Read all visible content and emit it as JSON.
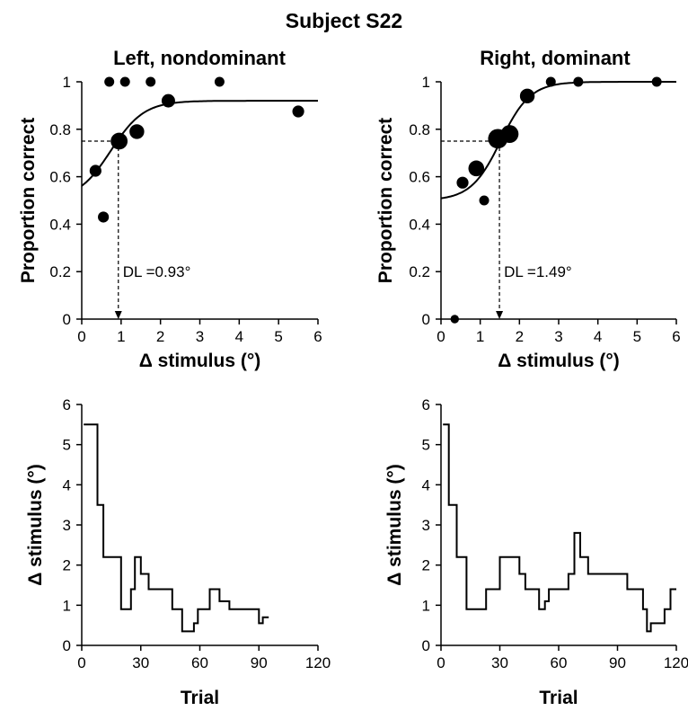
{
  "figure_title": "Subject S22",
  "chart_data": [
    {
      "id": "left-psychometric",
      "type": "scatter",
      "title": "Left, nondominant",
      "xlabel": "Δ stimulus (°)",
      "ylabel": "Proportion correct",
      "xlim": [
        0,
        6
      ],
      "ylim": [
        0,
        1
      ],
      "xticks": [
        "0",
        "1",
        "2",
        "3",
        "4",
        "5",
        "6"
      ],
      "yticks": [
        "0",
        "0.2",
        "0.4",
        "0.6",
        "0.8",
        "1"
      ],
      "grid": false,
      "points": [
        {
          "x": 0.35,
          "y": 0.625,
          "n": 4
        },
        {
          "x": 0.55,
          "y": 0.43,
          "n": 3
        },
        {
          "x": 0.7,
          "y": 1.0,
          "n": 2
        },
        {
          "x": 0.95,
          "y": 0.75,
          "n": 12
        },
        {
          "x": 1.1,
          "y": 1.0,
          "n": 2
        },
        {
          "x": 1.4,
          "y": 0.79,
          "n": 8
        },
        {
          "x": 1.75,
          "y": 1.0,
          "n": 2
        },
        {
          "x": 2.2,
          "y": 0.92,
          "n": 6
        },
        {
          "x": 3.5,
          "y": 1.0,
          "n": 2
        },
        {
          "x": 5.5,
          "y": 0.875,
          "n": 4
        }
      ],
      "fit": {
        "lower": 0.5,
        "upper": 0.92,
        "mu": 0.74,
        "s": 0.42
      },
      "threshold": {
        "x": 0.93,
        "y": 0.75,
        "label": "DL =0.93°"
      }
    },
    {
      "id": "right-psychometric",
      "type": "scatter",
      "title": "Right, dominant",
      "xlabel": "Δ stimulus (°)",
      "ylabel": "Proportion correct",
      "xlim": [
        0,
        6
      ],
      "ylim": [
        0,
        1
      ],
      "xticks": [
        "0",
        "1",
        "2",
        "3",
        "4",
        "5",
        "6"
      ],
      "yticks": [
        "0",
        "0.2",
        "0.4",
        "0.6",
        "0.8",
        "1"
      ],
      "grid": false,
      "points": [
        {
          "x": 0.35,
          "y": 0.0,
          "n": 1
        },
        {
          "x": 0.55,
          "y": 0.575,
          "n": 4
        },
        {
          "x": 0.9,
          "y": 0.635,
          "n": 10
        },
        {
          "x": 1.1,
          "y": 0.5,
          "n": 2
        },
        {
          "x": 1.45,
          "y": 0.76,
          "n": 18
        },
        {
          "x": 1.75,
          "y": 0.78,
          "n": 14
        },
        {
          "x": 2.2,
          "y": 0.94,
          "n": 8
        },
        {
          "x": 2.8,
          "y": 1.0,
          "n": 2
        },
        {
          "x": 3.5,
          "y": 1.0,
          "n": 2
        },
        {
          "x": 5.5,
          "y": 1.0,
          "n": 2
        }
      ],
      "fit": {
        "lower": 0.5,
        "upper": 1.0,
        "mu": 1.52,
        "s": 0.38
      },
      "threshold": {
        "x": 1.49,
        "y": 0.75,
        "label": "DL =1.49°"
      }
    },
    {
      "id": "left-staircase",
      "type": "line",
      "xlabel": "Trial",
      "ylabel": "Δ stimulus (°)",
      "xlim": [
        0,
        120
      ],
      "ylim": [
        0,
        6
      ],
      "xticks": [
        "0",
        "30",
        "60",
        "90",
        "120"
      ],
      "yticks": [
        "0",
        "1",
        "2",
        "3",
        "4",
        "5",
        "6"
      ],
      "grid": false,
      "x": [
        1,
        8,
        8,
        11,
        11,
        13,
        13,
        20,
        20,
        23,
        23,
        25,
        25,
        27,
        27,
        30,
        30,
        32,
        32,
        34,
        34,
        37,
        37,
        46,
        46,
        49,
        49,
        51,
        51,
        57,
        57,
        59,
        59,
        62,
        62,
        65,
        65,
        67,
        67,
        70,
        70,
        72,
        72,
        75,
        75,
        88,
        88,
        90,
        90,
        92,
        92,
        95
      ],
      "values": [
        5.5,
        5.5,
        3.5,
        3.5,
        2.2,
        2.2,
        2.2,
        2.2,
        0.9,
        0.9,
        0.9,
        0.9,
        1.4,
        1.4,
        2.2,
        2.2,
        1.78,
        1.78,
        1.78,
        1.78,
        1.4,
        1.4,
        1.4,
        1.4,
        0.9,
        0.9,
        0.9,
        0.9,
        0.35,
        0.35,
        0.55,
        0.55,
        0.9,
        0.9,
        0.9,
        0.9,
        1.4,
        1.4,
        1.4,
        1.4,
        1.1,
        1.1,
        1.1,
        1.1,
        0.9,
        0.9,
        0.9,
        0.9,
        0.55,
        0.55,
        0.7,
        0.7
      ]
    },
    {
      "id": "right-staircase",
      "type": "line",
      "xlabel": "Trial",
      "ylabel": "Δ stimulus (°)",
      "xlim": [
        0,
        120
      ],
      "ylim": [
        0,
        6
      ],
      "xticks": [
        "0",
        "30",
        "60",
        "90",
        "120"
      ],
      "yticks": [
        "0",
        "1",
        "2",
        "3",
        "4",
        "5",
        "6"
      ],
      "grid": false,
      "x": [
        1,
        4,
        4,
        6,
        6,
        8,
        8,
        10,
        10,
        13,
        13,
        23,
        23,
        26,
        26,
        30,
        30,
        33,
        33,
        40,
        40,
        43,
        43,
        50,
        50,
        53,
        53,
        55,
        55,
        58,
        58,
        65,
        65,
        68,
        68,
        71,
        71,
        75,
        75,
        78,
        78,
        95,
        95,
        103,
        103,
        105,
        105,
        107,
        107,
        114,
        114,
        117,
        117,
        120
      ],
      "values": [
        5.5,
        5.5,
        3.5,
        3.5,
        3.5,
        3.5,
        2.2,
        2.2,
        2.2,
        2.2,
        0.9,
        0.9,
        1.4,
        1.4,
        1.4,
        1.4,
        2.2,
        2.2,
        2.2,
        2.2,
        1.78,
        1.78,
        1.4,
        1.4,
        0.9,
        0.9,
        1.1,
        1.1,
        1.4,
        1.4,
        1.4,
        1.4,
        1.78,
        1.78,
        2.8,
        2.8,
        2.2,
        2.2,
        1.78,
        1.78,
        1.78,
        1.78,
        1.4,
        1.4,
        0.9,
        0.9,
        0.35,
        0.35,
        0.55,
        0.55,
        0.9,
        0.9,
        1.4,
        1.4
      ]
    }
  ]
}
